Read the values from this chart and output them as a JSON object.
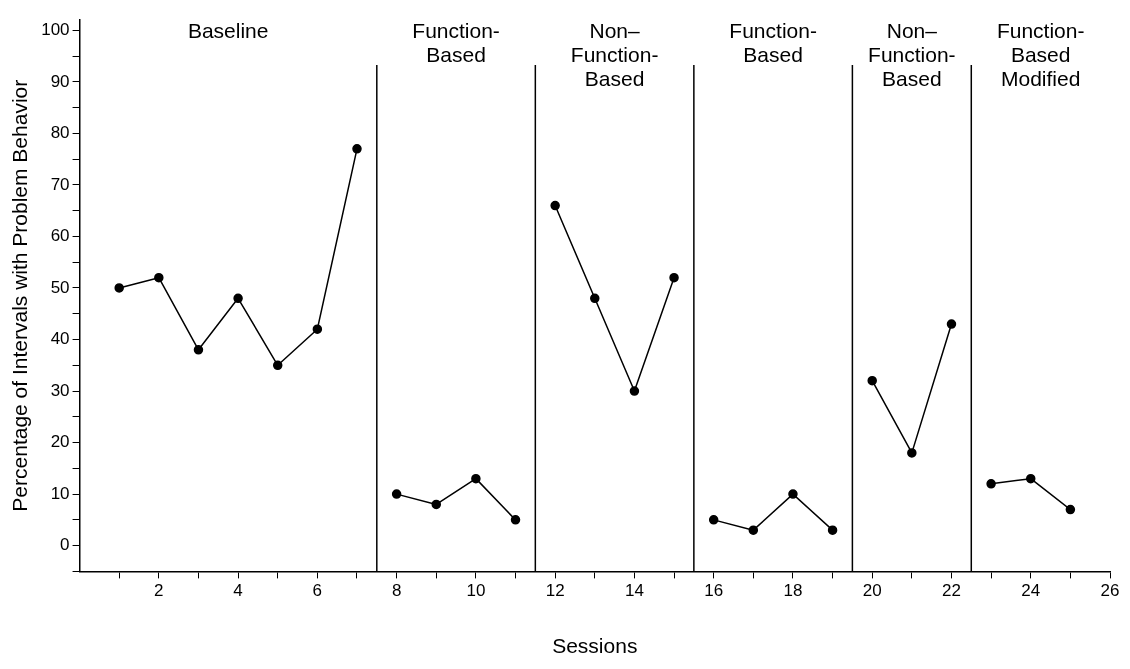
{
  "chart_data": {
    "type": "line",
    "xlabel": "Sessions",
    "ylabel": "Percentage of Intervals with Problem Behavior",
    "xlim": [
      0,
      26
    ],
    "ylim": [
      -5,
      102
    ],
    "xticks": [
      {
        "value": 1,
        "label": null
      },
      2,
      {
        "value": 3,
        "label": null
      },
      4,
      {
        "value": 5,
        "label": null
      },
      6,
      {
        "value": 7,
        "label": null
      },
      8,
      {
        "value": 9,
        "label": null
      },
      10,
      {
        "value": 11,
        "label": null
      },
      12,
      {
        "value": 13,
        "label": null
      },
      14,
      {
        "value": 15,
        "label": null
      },
      16,
      {
        "value": 17,
        "label": null
      },
      18,
      {
        "value": 19,
        "label": null
      },
      20,
      {
        "value": 21,
        "label": null
      },
      22,
      {
        "value": 23,
        "label": null
      },
      24,
      {
        "value": 25,
        "label": null
      },
      26
    ],
    "yticks": [
      {
        "value": -5,
        "label": null
      },
      0,
      {
        "value": 5,
        "label": null
      },
      10,
      {
        "value": 15,
        "label": null
      },
      20,
      {
        "value": 25,
        "label": null
      },
      30,
      {
        "value": 35,
        "label": null
      },
      40,
      {
        "value": 45,
        "label": null
      },
      50,
      {
        "value": 55,
        "label": null
      },
      60,
      {
        "value": 65,
        "label": null
      },
      70,
      {
        "value": 75,
        "label": null
      },
      80,
      {
        "value": 85,
        "label": null
      },
      90,
      {
        "value": 95,
        "label": null
      },
      100
    ],
    "grid": false,
    "legend": false,
    "marker": "circle",
    "line_style": "solid",
    "series": [
      {
        "color": "#000000",
        "x": [
          1,
          2,
          3,
          4,
          5,
          6,
          7
        ],
        "values": [
          50,
          52,
          38,
          48,
          35,
          42,
          77
        ]
      },
      {
        "color": "#000000",
        "x": [
          8,
          9,
          10,
          11
        ],
        "values": [
          10,
          8,
          13,
          5
        ]
      },
      {
        "color": "#000000",
        "x": [
          12,
          13,
          14,
          15
        ],
        "values": [
          66,
          48,
          30,
          52
        ]
      },
      {
        "color": "#000000",
        "x": [
          16,
          17,
          18,
          19
        ],
        "values": [
          5,
          3,
          10,
          3
        ]
      },
      {
        "color": "#000000",
        "x": [
          20,
          21,
          22
        ],
        "values": [
          32,
          18,
          43
        ]
      },
      {
        "color": "#000000",
        "x": [
          23,
          24,
          25
        ],
        "values": [
          12,
          13,
          7
        ]
      }
    ],
    "ref_lines": [
      {
        "axis": "x",
        "value": 7.5,
        "color": "#000000"
      },
      {
        "axis": "x",
        "value": 11.5,
        "color": "#000000"
      },
      {
        "axis": "x",
        "value": 15.5,
        "color": "#000000"
      },
      {
        "axis": "x",
        "value": 19.5,
        "color": "#000000"
      },
      {
        "axis": "x",
        "value": 22.5,
        "color": "#000000"
      }
    ],
    "annotations": [
      "Baseline",
      "Function-\nBased",
      "Non–\nFunction-\nBased",
      "Function-\nBased",
      "Non–\nFunction-\nBased",
      "Function-\nBased\nModified"
    ]
  }
}
